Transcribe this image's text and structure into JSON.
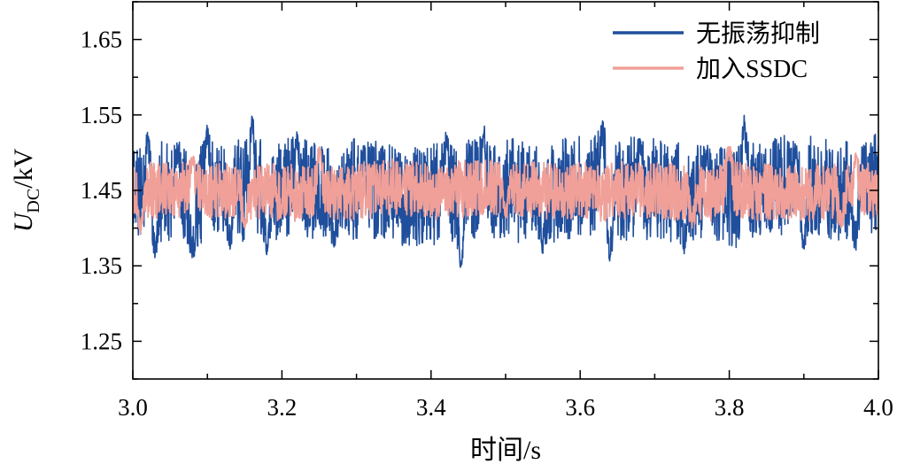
{
  "chart_data": {
    "type": "line",
    "title": "",
    "xlabel": "时间/s",
    "ylabel": {
      "main": "U",
      "sub": "DC",
      "unit": "/kV"
    },
    "xlim": [
      3.0,
      4.0
    ],
    "ylim": [
      1.2,
      1.7
    ],
    "x_ticks": [
      3.0,
      3.2,
      3.4,
      3.6,
      3.8,
      4.0
    ],
    "x_tick_labels": [
      "3.0",
      "3.2",
      "3.4",
      "3.6",
      "3.8",
      "4.0"
    ],
    "y_ticks": [
      1.25,
      1.35,
      1.45,
      1.55,
      1.65
    ],
    "y_tick_labels": [
      "1.25",
      "1.35",
      "1.45",
      "1.55",
      "1.65"
    ],
    "grid": false,
    "legend_position": "top-right",
    "series": [
      {
        "name": "无振荡抑制",
        "color": "#1f4e9c",
        "mean": 1.45,
        "band": [
          1.36,
          1.54
        ],
        "peaks": [
          {
            "x": 3.02,
            "y": 1.53
          },
          {
            "x": 3.06,
            "y": 1.52
          },
          {
            "x": 3.1,
            "y": 1.54
          },
          {
            "x": 3.16,
            "y": 1.55
          },
          {
            "x": 3.22,
            "y": 1.53
          },
          {
            "x": 3.31,
            "y": 1.51
          },
          {
            "x": 3.42,
            "y": 1.53
          },
          {
            "x": 3.47,
            "y": 1.54
          },
          {
            "x": 3.63,
            "y": 1.55
          },
          {
            "x": 3.68,
            "y": 1.52
          },
          {
            "x": 3.77,
            "y": 1.51
          },
          {
            "x": 3.82,
            "y": 1.55
          },
          {
            "x": 3.89,
            "y": 1.51
          },
          {
            "x": 3.98,
            "y": 1.51
          }
        ],
        "troughs": [
          {
            "x": 3.03,
            "y": 1.36
          },
          {
            "x": 3.08,
            "y": 1.35
          },
          {
            "x": 3.13,
            "y": 1.37
          },
          {
            "x": 3.18,
            "y": 1.36
          },
          {
            "x": 3.27,
            "y": 1.37
          },
          {
            "x": 3.44,
            "y": 1.34
          },
          {
            "x": 3.55,
            "y": 1.36
          },
          {
            "x": 3.64,
            "y": 1.35
          },
          {
            "x": 3.74,
            "y": 1.36
          },
          {
            "x": 3.9,
            "y": 1.37
          },
          {
            "x": 3.97,
            "y": 1.37
          }
        ]
      },
      {
        "name": "加入SSDC",
        "color": "#f0a098",
        "mean": 1.45,
        "band": [
          1.4,
          1.5
        ],
        "peaks": [
          {
            "x": 3.08,
            "y": 1.5
          },
          {
            "x": 3.25,
            "y": 1.51
          },
          {
            "x": 3.5,
            "y": 1.5
          },
          {
            "x": 3.8,
            "y": 1.52
          },
          {
            "x": 3.97,
            "y": 1.5
          }
        ],
        "troughs": [
          {
            "x": 3.01,
            "y": 1.39
          },
          {
            "x": 3.15,
            "y": 1.4
          },
          {
            "x": 3.5,
            "y": 1.4
          },
          {
            "x": 3.75,
            "y": 1.4
          },
          {
            "x": 3.95,
            "y": 1.4
          }
        ]
      }
    ]
  }
}
